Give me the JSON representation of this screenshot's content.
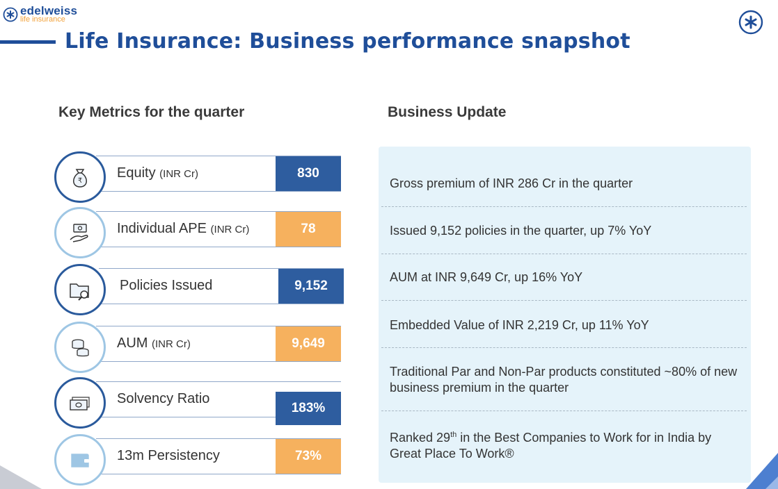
{
  "header": {
    "logo_name": "edelweiss",
    "logo_sub": "life insurance",
    "title": "Life Insurance: Business performance snapshot"
  },
  "colors": {
    "brand_blue": "#1f4e99",
    "metric_blue": "#2e5d9f",
    "metric_orange": "#f6b15e",
    "panel_bg": "#e5f3fa"
  },
  "key_metrics": {
    "heading": "Key Metrics for the quarter",
    "items": [
      {
        "label": "Equity",
        "unit": "(INR Cr)",
        "value": "830",
        "color": "#2e5d9f",
        "icon": "money-bag-icon"
      },
      {
        "label": "Individual APE",
        "unit": "(INR Cr)",
        "value": "78",
        "color": "#f6b15e",
        "icon": "cash-hand-icon"
      },
      {
        "label": "Policies Issued",
        "unit": "",
        "value": "9,152",
        "color": "#2e5d9f",
        "icon": "folder-search-icon"
      },
      {
        "label": "AUM",
        "unit": "(INR Cr)",
        "value": "9,649",
        "color": "#f6b15e",
        "icon": "coins-icon"
      },
      {
        "label": "Solvency Ratio",
        "unit": "",
        "value": "183%",
        "color": "#2e5d9f",
        "icon": "banknotes-icon"
      },
      {
        "label": "13m Persistency",
        "unit": "",
        "value": "73%",
        "color": "#f6b15e",
        "icon": "wallet-icon"
      }
    ]
  },
  "business_update": {
    "heading": "Business Update",
    "items": [
      {
        "text": "Gross premium of INR 286 Cr in the quarter"
      },
      {
        "text": "Issued 9,152 policies in the quarter, up 7% YoY"
      },
      {
        "text": "AUM at INR 9,649 Cr, up 16% YoY"
      },
      {
        "text": "Embedded Value of INR 2,219 Cr, up 11% YoY"
      },
      {
        "text": "Traditional Par and Non-Par products constituted ~80% of new business premium in the quarter"
      },
      {
        "pre": "Ranked 29",
        "sup": "th",
        "post": " in the Best Companies to Work for in India by Great Place To Work®"
      }
    ]
  }
}
